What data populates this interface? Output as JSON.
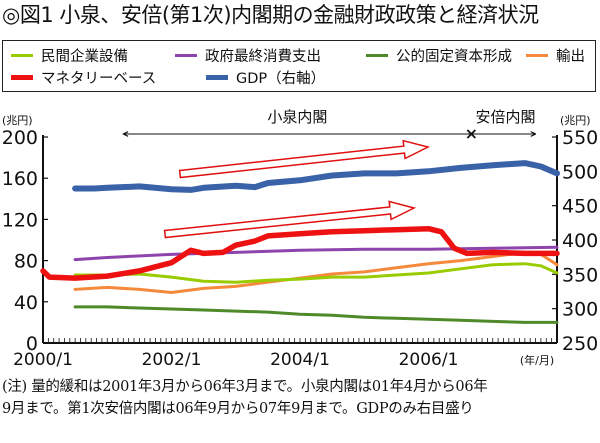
{
  "title": "◎図1 小泉、安倍(第1次)内閣期の金融財政政策と経済状況",
  "legend": [
    {
      "label": "民間企業設備",
      "color": "#99cc00"
    },
    {
      "label": "政府最終消費支出",
      "color": "#8e44ad"
    },
    {
      "label": "公的固定資本形成",
      "color": "#4f8a2a"
    },
    {
      "label": "輸出",
      "color": "#f58a3c"
    },
    {
      "label": "マネタリーベース",
      "color": "#ee1111"
    },
    {
      "label": "GDP（右軸）",
      "color": "#3a62a8"
    }
  ],
  "note_lines": [
    "(注) 量的緩和は2001年3月から06年3月まで。小泉内閣は01年4月から06年",
    "9月まで。第1次安倍内閣は06年9月から07年9月まで。GDPのみ右目盛り"
  ],
  "chart_data": {
    "type": "line",
    "title": "小泉、安倍(第1次)内閣期の金融財政政策と経済状況",
    "xlabel": "(年/月)",
    "ylabel_left": "(兆円)",
    "ylabel_right": "(兆円)",
    "x_ticks": [
      "2000/1",
      "2002/1",
      "2004/1",
      "2006/1"
    ],
    "x_range": [
      "2000/1",
      "2008/1"
    ],
    "y_left": {
      "min": 0,
      "max": 200,
      "ticks": [
        0,
        40,
        80,
        120,
        160,
        200
      ]
    },
    "y_right": {
      "min": 250,
      "max": 550,
      "ticks": [
        250,
        300,
        350,
        400,
        450,
        500,
        550
      ]
    },
    "grid": false,
    "legend_position": "top",
    "series": [
      {
        "name": "民間企業設備",
        "axis": "left",
        "color": "#99cc00",
        "x": [
          2000.5,
          2001.0,
          2001.5,
          2002.0,
          2002.5,
          2003.0,
          2003.5,
          2004.0,
          2004.5,
          2005.0,
          2005.5,
          2006.0,
          2006.5,
          2007.0,
          2007.5,
          2007.75,
          2008.0
        ],
        "values": [
          66,
          66,
          67,
          64,
          60,
          59,
          61,
          62,
          64,
          64,
          66,
          68,
          72,
          76,
          77,
          75,
          68
        ]
      },
      {
        "name": "政府最終消費支出",
        "axis": "left",
        "color": "#8e44ad",
        "x": [
          2000.5,
          2001.0,
          2002.0,
          2003.0,
          2004.0,
          2005.0,
          2006.0,
          2007.0,
          2008.0
        ],
        "values": [
          81,
          83,
          86,
          88,
          90,
          91,
          91,
          92,
          93
        ]
      },
      {
        "name": "公的固定資本形成",
        "axis": "left",
        "color": "#4f8a2a",
        "x": [
          2000.5,
          2001.0,
          2001.5,
          2002.0,
          2002.5,
          2003.0,
          2003.5,
          2004.0,
          2004.5,
          2005.0,
          2005.5,
          2006.0,
          2006.5,
          2007.0,
          2007.5,
          2008.0
        ],
        "values": [
          35,
          35,
          34,
          33,
          32,
          31,
          30,
          28,
          27,
          25,
          24,
          23,
          22,
          21,
          20,
          20
        ]
      },
      {
        "name": "輸出",
        "axis": "left",
        "color": "#f58a3c",
        "x": [
          2000.5,
          2001.0,
          2001.5,
          2002.0,
          2002.5,
          2003.0,
          2003.5,
          2004.0,
          2004.5,
          2005.0,
          2005.5,
          2006.0,
          2006.5,
          2007.0,
          2007.5,
          2007.75,
          2008.0
        ],
        "values": [
          52,
          54,
          52,
          49,
          53,
          55,
          59,
          63,
          67,
          69,
          73,
          77,
          80,
          84,
          88,
          86,
          76
        ]
      },
      {
        "name": "マネタリーベース",
        "axis": "left",
        "color": "#ee1111",
        "x": [
          2000.0,
          2000.1,
          2000.5,
          2001.0,
          2001.5,
          2002.0,
          2002.2,
          2002.3,
          2002.5,
          2002.8,
          2003.0,
          2003.3,
          2003.5,
          2004.0,
          2004.5,
          2005.0,
          2005.5,
          2006.0,
          2006.2,
          2006.4,
          2006.6,
          2007.0,
          2007.5,
          2008.0
        ],
        "values": [
          70,
          64,
          63,
          65,
          70,
          78,
          86,
          90,
          87,
          88,
          95,
          99,
          104,
          106,
          108,
          109,
          110,
          111,
          108,
          92,
          87,
          88,
          87,
          87
        ]
      },
      {
        "name": "GDP（右軸）",
        "axis": "right",
        "color": "#3a62a8",
        "x": [
          2000.5,
          2000.8,
          2001.0,
          2001.5,
          2002.0,
          2002.3,
          2002.5,
          2003.0,
          2003.3,
          2003.5,
          2004.0,
          2004.5,
          2005.0,
          2005.5,
          2006.0,
          2006.5,
          2007.0,
          2007.5,
          2007.75,
          2008.0
        ],
        "values": [
          475,
          475,
          476,
          478,
          474,
          473,
          476,
          479,
          477,
          483,
          487,
          494,
          497,
          497,
          500,
          505,
          509,
          512,
          507,
          497
        ]
      }
    ],
    "annotations": [
      {
        "text": "小泉内閣",
        "type": "span-arrow",
        "from": "2001/4",
        "to": "2006/9"
      },
      {
        "text": "安倍内閣",
        "type": "span-arrow",
        "from": "2006/9",
        "to": "2007/9"
      },
      {
        "text": "",
        "type": "trend-arrow",
        "series": "GDP（右軸）",
        "direction": "up"
      },
      {
        "text": "",
        "type": "trend-arrow",
        "series": "マネタリーベース",
        "direction": "up"
      }
    ]
  }
}
